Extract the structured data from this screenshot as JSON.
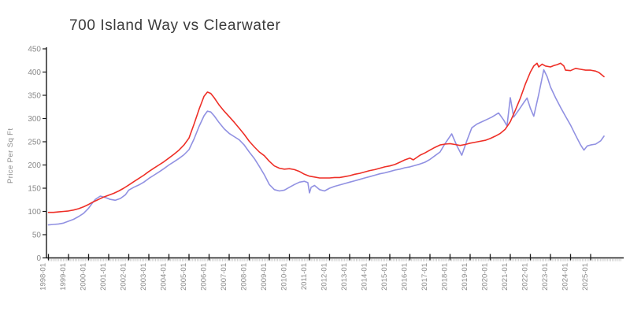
{
  "page": {
    "title": "700 Island Way vs Clearwater"
  },
  "style": {
    "background": "#ffffff",
    "axis_color": "#1a1a1a",
    "tick_label_color": "#8a8a8a",
    "minor_tick_color": "#c9c9c9",
    "title_color": "#3b3b3b",
    "red_series_color": "#ee2f27",
    "blue_series_color": "#9191e2"
  },
  "chart_data": {
    "type": "line",
    "title": "700 Island Way vs Clearwater",
    "xlabel": "",
    "ylabel": "Price Per Sq Ft",
    "ylim": [
      0,
      450
    ],
    "yticks": [
      0,
      50,
      100,
      150,
      200,
      250,
      300,
      350,
      400,
      450
    ],
    "xtick_labels": [
      "1998-01",
      "1999-01",
      "2000-01",
      "2001-01",
      "2002-01",
      "2003-01",
      "2004-01",
      "2005-01",
      "2006-01",
      "2007-01",
      "2008-01",
      "2009-01",
      "2010-01",
      "2011-01",
      "2012-01",
      "2013-01",
      "2014-01",
      "2015-01",
      "2016-01",
      "2017-01",
      "2018-01",
      "2019-01",
      "2020-01",
      "2021-01",
      "2022-01",
      "2023-01",
      "2024-01",
      "2025-01"
    ],
    "x_minor_tick_interval": "month",
    "grid": false,
    "legend": "none",
    "series": [
      {
        "name": "700 Island Way",
        "color": "#9191e2",
        "points": [
          [
            "1998-01",
            71
          ],
          [
            "1998-04",
            72
          ],
          [
            "1998-07",
            73
          ],
          [
            "1998-10",
            75
          ],
          [
            "1999-01",
            79
          ],
          [
            "1999-04",
            83
          ],
          [
            "1999-07",
            89
          ],
          [
            "1999-10",
            96
          ],
          [
            "2000-01",
            107
          ],
          [
            "2000-03",
            117
          ],
          [
            "2000-05",
            126
          ],
          [
            "2000-08",
            133
          ],
          [
            "2000-11",
            130
          ],
          [
            "2001-02",
            126
          ],
          [
            "2001-05",
            124
          ],
          [
            "2001-08",
            128
          ],
          [
            "2001-11",
            136
          ],
          [
            "2002-01",
            146
          ],
          [
            "2002-04",
            152
          ],
          [
            "2002-07",
            157
          ],
          [
            "2002-10",
            163
          ],
          [
            "2003-01",
            171
          ],
          [
            "2003-04",
            178
          ],
          [
            "2003-07",
            185
          ],
          [
            "2003-10",
            192
          ],
          [
            "2004-01",
            200
          ],
          [
            "2004-04",
            207
          ],
          [
            "2004-07",
            214
          ],
          [
            "2004-10",
            222
          ],
          [
            "2005-01",
            233
          ],
          [
            "2005-04",
            256
          ],
          [
            "2005-07",
            283
          ],
          [
            "2005-10",
            306
          ],
          [
            "2005-12",
            316
          ],
          [
            "2006-02",
            314
          ],
          [
            "2006-04",
            306
          ],
          [
            "2006-07",
            291
          ],
          [
            "2006-10",
            278
          ],
          [
            "2007-01",
            268
          ],
          [
            "2007-04",
            261
          ],
          [
            "2007-07",
            254
          ],
          [
            "2007-10",
            243
          ],
          [
            "2008-01",
            228
          ],
          [
            "2008-04",
            214
          ],
          [
            "2008-07",
            197
          ],
          [
            "2008-10",
            179
          ],
          [
            "2009-01",
            158
          ],
          [
            "2009-04",
            147
          ],
          [
            "2009-07",
            144
          ],
          [
            "2009-10",
            146
          ],
          [
            "2010-01",
            152
          ],
          [
            "2010-04",
            158
          ],
          [
            "2010-07",
            163
          ],
          [
            "2010-10",
            165
          ],
          [
            "2010-12",
            162
          ],
          [
            "2011-01",
            140
          ],
          [
            "2011-02",
            152
          ],
          [
            "2011-04",
            156
          ],
          [
            "2011-07",
            147
          ],
          [
            "2011-10",
            144
          ],
          [
            "2012-01",
            150
          ],
          [
            "2012-04",
            154
          ],
          [
            "2012-07",
            157
          ],
          [
            "2012-10",
            160
          ],
          [
            "2013-01",
            163
          ],
          [
            "2013-04",
            166
          ],
          [
            "2013-07",
            169
          ],
          [
            "2013-10",
            172
          ],
          [
            "2014-01",
            175
          ],
          [
            "2014-04",
            178
          ],
          [
            "2014-07",
            181
          ],
          [
            "2014-10",
            183
          ],
          [
            "2015-01",
            186
          ],
          [
            "2015-04",
            189
          ],
          [
            "2015-07",
            191
          ],
          [
            "2015-10",
            194
          ],
          [
            "2016-01",
            196
          ],
          [
            "2016-04",
            199
          ],
          [
            "2016-07",
            202
          ],
          [
            "2016-10",
            206
          ],
          [
            "2017-01",
            212
          ],
          [
            "2017-04",
            220
          ],
          [
            "2017-07",
            228
          ],
          [
            "2017-10",
            246
          ],
          [
            "2018-02",
            267
          ],
          [
            "2018-05",
            242
          ],
          [
            "2018-08",
            221
          ],
          [
            "2018-11",
            252
          ],
          [
            "2019-02",
            280
          ],
          [
            "2019-05",
            288
          ],
          [
            "2019-08",
            293
          ],
          [
            "2019-11",
            298
          ],
          [
            "2020-02",
            303
          ],
          [
            "2020-06",
            312
          ],
          [
            "2020-09",
            297
          ],
          [
            "2020-11",
            284
          ],
          [
            "2021-01",
            345
          ],
          [
            "2021-03",
            303
          ],
          [
            "2021-06",
            318
          ],
          [
            "2021-09",
            334
          ],
          [
            "2021-11",
            344
          ],
          [
            "2022-01",
            322
          ],
          [
            "2022-03",
            305
          ],
          [
            "2022-06",
            352
          ],
          [
            "2022-09",
            405
          ],
          [
            "2022-11",
            390
          ],
          [
            "2023-01",
            368
          ],
          [
            "2023-04",
            345
          ],
          [
            "2023-07",
            324
          ],
          [
            "2023-10",
            305
          ],
          [
            "2024-01",
            286
          ],
          [
            "2024-04",
            264
          ],
          [
            "2024-07",
            243
          ],
          [
            "2024-09",
            232
          ],
          [
            "2024-11",
            241
          ],
          [
            "2025-01",
            243
          ],
          [
            "2025-04",
            245
          ],
          [
            "2025-07",
            252
          ],
          [
            "2025-09",
            262
          ]
        ]
      },
      {
        "name": "Clearwater",
        "color": "#ee2f27",
        "points": [
          [
            "1998-01",
            98
          ],
          [
            "1998-04",
            98
          ],
          [
            "1998-07",
            99
          ],
          [
            "1998-10",
            100
          ],
          [
            "1999-01",
            101
          ],
          [
            "1999-04",
            103
          ],
          [
            "1999-07",
            106
          ],
          [
            "1999-10",
            110
          ],
          [
            "2000-01",
            115
          ],
          [
            "2000-04",
            121
          ],
          [
            "2000-07",
            126
          ],
          [
            "2000-10",
            131
          ],
          [
            "2001-01",
            135
          ],
          [
            "2001-04",
            139
          ],
          [
            "2001-07",
            144
          ],
          [
            "2001-10",
            150
          ],
          [
            "2002-01",
            157
          ],
          [
            "2002-04",
            164
          ],
          [
            "2002-07",
            171
          ],
          [
            "2002-10",
            178
          ],
          [
            "2003-01",
            186
          ],
          [
            "2003-04",
            193
          ],
          [
            "2003-07",
            200
          ],
          [
            "2003-10",
            207
          ],
          [
            "2004-01",
            215
          ],
          [
            "2004-04",
            223
          ],
          [
            "2004-07",
            232
          ],
          [
            "2004-10",
            243
          ],
          [
            "2005-01",
            258
          ],
          [
            "2005-04",
            288
          ],
          [
            "2005-07",
            320
          ],
          [
            "2005-10",
            348
          ],
          [
            "2005-12",
            357
          ],
          [
            "2006-02",
            354
          ],
          [
            "2006-04",
            345
          ],
          [
            "2006-07",
            329
          ],
          [
            "2006-10",
            316
          ],
          [
            "2007-01",
            304
          ],
          [
            "2007-04",
            292
          ],
          [
            "2007-07",
            279
          ],
          [
            "2007-10",
            266
          ],
          [
            "2008-01",
            251
          ],
          [
            "2008-04",
            239
          ],
          [
            "2008-07",
            228
          ],
          [
            "2008-10",
            220
          ],
          [
            "2009-01",
            208
          ],
          [
            "2009-04",
            198
          ],
          [
            "2009-07",
            193
          ],
          [
            "2009-10",
            191
          ],
          [
            "2010-01",
            192
          ],
          [
            "2010-04",
            190
          ],
          [
            "2010-07",
            186
          ],
          [
            "2010-10",
            180
          ],
          [
            "2011-01",
            176
          ],
          [
            "2011-04",
            174
          ],
          [
            "2011-07",
            172
          ],
          [
            "2011-10",
            172
          ],
          [
            "2012-01",
            172
          ],
          [
            "2012-04",
            173
          ],
          [
            "2012-07",
            173
          ],
          [
            "2012-10",
            175
          ],
          [
            "2013-01",
            177
          ],
          [
            "2013-04",
            180
          ],
          [
            "2013-07",
            182
          ],
          [
            "2013-10",
            185
          ],
          [
            "2014-01",
            188
          ],
          [
            "2014-04",
            190
          ],
          [
            "2014-07",
            193
          ],
          [
            "2014-10",
            196
          ],
          [
            "2015-01",
            198
          ],
          [
            "2015-04",
            201
          ],
          [
            "2015-07",
            206
          ],
          [
            "2015-10",
            211
          ],
          [
            "2016-01",
            215
          ],
          [
            "2016-03",
            211
          ],
          [
            "2016-05",
            216
          ],
          [
            "2016-07",
            221
          ],
          [
            "2016-10",
            226
          ],
          [
            "2017-01",
            232
          ],
          [
            "2017-04",
            238
          ],
          [
            "2017-07",
            243
          ],
          [
            "2017-10",
            245
          ],
          [
            "2018-01",
            246
          ],
          [
            "2018-04",
            244
          ],
          [
            "2018-07",
            242
          ],
          [
            "2018-10",
            244
          ],
          [
            "2019-01",
            247
          ],
          [
            "2019-04",
            249
          ],
          [
            "2019-07",
            251
          ],
          [
            "2019-10",
            253
          ],
          [
            "2020-01",
            257
          ],
          [
            "2020-04",
            262
          ],
          [
            "2020-07",
            268
          ],
          [
            "2020-10",
            277
          ],
          [
            "2021-01",
            293
          ],
          [
            "2021-04",
            318
          ],
          [
            "2021-07",
            344
          ],
          [
            "2021-10",
            374
          ],
          [
            "2022-01",
            400
          ],
          [
            "2022-03",
            413
          ],
          [
            "2022-05",
            419
          ],
          [
            "2022-06",
            411
          ],
          [
            "2022-08",
            417
          ],
          [
            "2022-10",
            413
          ],
          [
            "2023-01",
            411
          ],
          [
            "2023-03",
            414
          ],
          [
            "2023-05",
            416
          ],
          [
            "2023-07",
            419
          ],
          [
            "2023-09",
            413
          ],
          [
            "2023-10",
            404
          ],
          [
            "2024-01",
            403
          ],
          [
            "2024-04",
            408
          ],
          [
            "2024-07",
            406
          ],
          [
            "2024-10",
            404
          ],
          [
            "2025-01",
            404
          ],
          [
            "2025-04",
            402
          ],
          [
            "2025-06",
            399
          ],
          [
            "2025-09",
            390
          ]
        ]
      }
    ]
  }
}
